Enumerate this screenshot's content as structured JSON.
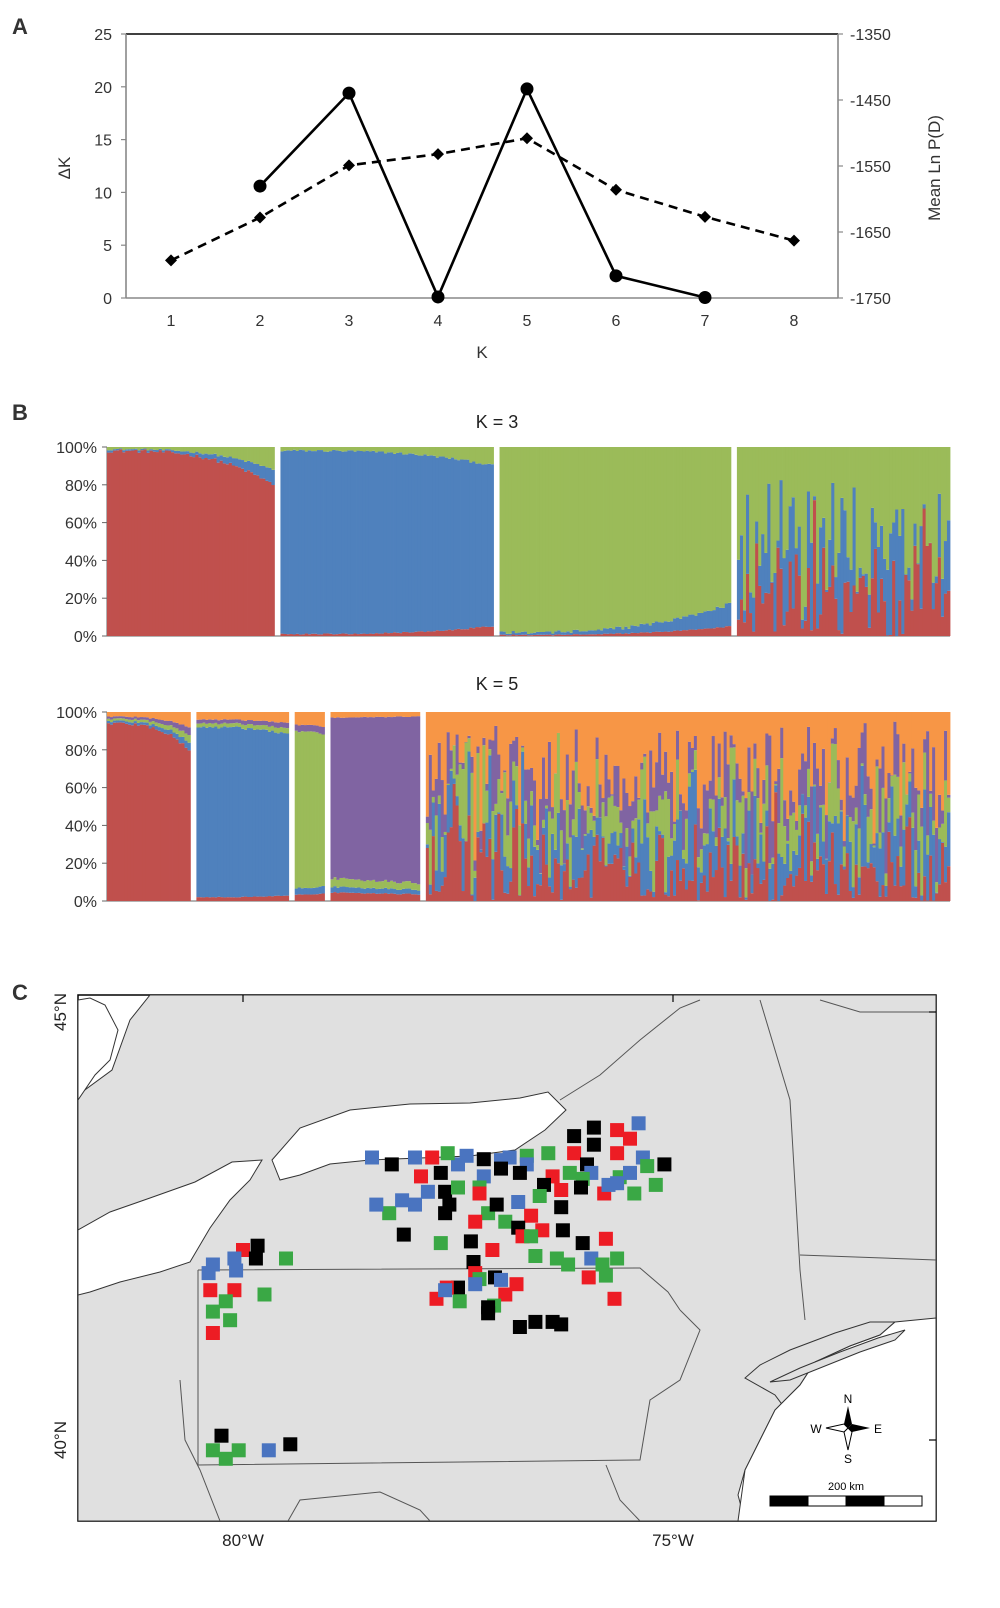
{
  "panels": {
    "a_label": "A",
    "b_label": "B",
    "c_label": "C"
  },
  "chart_data": [
    {
      "type": "line",
      "panel": "A",
      "xlabel": "K",
      "ylabel": "ΔK",
      "y2label": "Mean Ln P(D)",
      "x_ticks": [
        1,
        2,
        3,
        4,
        5,
        6,
        7,
        8
      ],
      "ylim": [
        0,
        25
      ],
      "y_ticks": [
        0,
        5,
        10,
        15,
        20,
        25
      ],
      "y2lim": [
        -1750,
        -1350
      ],
      "y2_ticks": [
        -1750,
        -1650,
        -1550,
        -1450,
        -1350
      ],
      "grid": false,
      "series": [
        {
          "style": "solid",
          "marker": "circle",
          "axis": "left",
          "x": [
            2,
            3,
            4,
            5,
            6,
            7
          ],
          "values": [
            10.6,
            19.4,
            0.1,
            19.8,
            2.1,
            0.05
          ]
        },
        {
          "style": "dashed",
          "marker": "diamond",
          "axis": "right",
          "x": [
            1,
            2,
            3,
            4,
            5,
            6,
            7,
            8
          ],
          "values": [
            -1693,
            -1628,
            -1549,
            -1532,
            -1508,
            -1586,
            -1627,
            -1663
          ]
        }
      ]
    },
    {
      "type": "bar",
      "panel": "B",
      "subtitle": "K = 3",
      "stacked": true,
      "ylim": [
        0,
        100
      ],
      "y_ticks": [
        "0%",
        "20%",
        "40%",
        "60%",
        "80%",
        "100%"
      ],
      "colors": [
        "#c0504d",
        "#4f81bd",
        "#9bbb59"
      ],
      "groups": [
        {
          "size": 55,
          "dominant": 0,
          "start": 98,
          "end": 80,
          "trend": "down",
          "other": [
            0.4,
            0.6
          ]
        },
        {
          "size": 70,
          "dominant": 1,
          "start": 97,
          "end": 85,
          "trend": "down",
          "other": [
            0.35,
            0.65
          ]
        },
        {
          "size": 76,
          "dominant": 2,
          "start": 98,
          "end": 83,
          "trend": "down",
          "other": [
            0.3,
            0.7
          ]
        },
        {
          "size": 70,
          "mixed": true
        }
      ]
    },
    {
      "type": "bar",
      "panel": "B",
      "subtitle": "K = 5",
      "stacked": true,
      "ylim": [
        0,
        100
      ],
      "y_ticks": [
        "0%",
        "20%",
        "40%",
        "60%",
        "80%",
        "100%"
      ],
      "colors": [
        "#c0504d",
        "#4f81bd",
        "#9bbb59",
        "#8064a2",
        "#f79646"
      ],
      "groups": [
        {
          "size": 28,
          "dominant": 0,
          "start": 94,
          "end": 80,
          "trend": "down",
          "other": [
            0.2,
            0.2,
            0.2,
            0.4
          ]
        },
        {
          "size": 31,
          "dominant": 1,
          "start": 90,
          "end": 85,
          "trend": "down",
          "other": [
            0.2,
            0.2,
            0.2,
            0.4
          ]
        },
        {
          "size": 10,
          "dominant": 2,
          "start": 83,
          "end": 80,
          "trend": "down",
          "other": [
            0.2,
            0.2,
            0.2,
            0.4
          ]
        },
        {
          "size": 30,
          "dominant": 3,
          "start": 85,
          "end": 88,
          "trend": "up",
          "other": [
            0.3,
            0.2,
            0.3,
            0.2
          ]
        },
        {
          "size": 176,
          "mixed": true
        }
      ]
    }
  ],
  "map": {
    "lat_labels": [
      "45°N",
      "40°N"
    ],
    "lon_labels": [
      "80°W",
      "75°W"
    ],
    "compass": {
      "n": "N",
      "s": "S",
      "e": "E",
      "w": "W"
    },
    "scale_label": "200 km",
    "colors": {
      "black": "#000000",
      "red": "#ed1c24",
      "blue": "#4a74c0",
      "green": "#3aa845",
      "land": "#e0e0e0",
      "water": "#ffffff"
    },
    "sites": [
      {
        "c": "black",
        "lon": -76.15,
        "lat": 43.55
      },
      {
        "c": "black",
        "lon": -75.92,
        "lat": 43.65
      },
      {
        "c": "red",
        "lon": -75.65,
        "lat": 43.62
      },
      {
        "c": "blue",
        "lon": -75.4,
        "lat": 43.7
      },
      {
        "c": "red",
        "lon": -75.5,
        "lat": 43.52
      },
      {
        "c": "black",
        "lon": -75.92,
        "lat": 43.45
      },
      {
        "c": "red",
        "lon": -76.15,
        "lat": 43.35
      },
      {
        "c": "blue",
        "lon": -76.9,
        "lat": 43.3
      },
      {
        "c": "blue",
        "lon": -77.0,
        "lat": 43.27
      },
      {
        "c": "green",
        "lon": -76.7,
        "lat": 43.32
      },
      {
        "c": "green",
        "lon": -76.45,
        "lat": 43.35
      },
      {
        "c": "red",
        "lon": -75.65,
        "lat": 43.35
      },
      {
        "c": "blue",
        "lon": -75.35,
        "lat": 43.3
      },
      {
        "c": "black",
        "lon": -75.1,
        "lat": 43.22
      },
      {
        "c": "green",
        "lon": -75.3,
        "lat": 43.2
      },
      {
        "c": "black",
        "lon": -76.0,
        "lat": 43.22
      },
      {
        "c": "blue",
        "lon": -77.4,
        "lat": 43.32
      },
      {
        "c": "blue",
        "lon": -77.5,
        "lat": 43.22
      },
      {
        "c": "red",
        "lon": -77.8,
        "lat": 43.3
      },
      {
        "c": "blue",
        "lon": -78.0,
        "lat": 43.3
      },
      {
        "c": "green",
        "lon": -77.62,
        "lat": 43.35
      },
      {
        "c": "black",
        "lon": -77.2,
        "lat": 43.28
      },
      {
        "c": "blue",
        "lon": -76.7,
        "lat": 43.22
      },
      {
        "c": "black",
        "lon": -76.78,
        "lat": 43.12
      },
      {
        "c": "red",
        "lon": -76.4,
        "lat": 43.08
      },
      {
        "c": "green",
        "lon": -76.2,
        "lat": 43.12
      },
      {
        "c": "blue",
        "lon": -75.95,
        "lat": 43.12
      },
      {
        "c": "green",
        "lon": -76.05,
        "lat": 43.05
      },
      {
        "c": "green",
        "lon": -75.62,
        "lat": 43.07
      },
      {
        "c": "blue",
        "lon": -75.5,
        "lat": 43.12
      },
      {
        "c": "blue",
        "lon": -75.65,
        "lat": 43.0
      },
      {
        "c": "black",
        "lon": -78.27,
        "lat": 43.22
      },
      {
        "c": "blue",
        "lon": -78.5,
        "lat": 43.3
      },
      {
        "c": "red",
        "lon": -77.93,
        "lat": 43.08
      },
      {
        "c": "black",
        "lon": -77.7,
        "lat": 43.12
      },
      {
        "c": "black",
        "lon": -77.0,
        "lat": 43.17
      },
      {
        "c": "blue",
        "lon": -77.2,
        "lat": 43.08
      },
      {
        "c": "green",
        "lon": -77.25,
        "lat": 42.95
      },
      {
        "c": "black",
        "lon": -76.5,
        "lat": 42.98
      },
      {
        "c": "green",
        "lon": -76.55,
        "lat": 42.85
      },
      {
        "c": "red",
        "lon": -76.3,
        "lat": 42.92
      },
      {
        "c": "black",
        "lon": -76.07,
        "lat": 42.95
      },
      {
        "c": "red",
        "lon": -75.8,
        "lat": 42.88
      },
      {
        "c": "green",
        "lon": -75.45,
        "lat": 42.88
      },
      {
        "c": "green",
        "lon": -75.2,
        "lat": 42.98
      },
      {
        "c": "blue",
        "lon": -75.75,
        "lat": 42.98
      },
      {
        "c": "black",
        "lon": -77.65,
        "lat": 42.9
      },
      {
        "c": "blue",
        "lon": -77.85,
        "lat": 42.9
      },
      {
        "c": "green",
        "lon": -77.5,
        "lat": 42.95
      },
      {
        "c": "red",
        "lon": -77.25,
        "lat": 42.88
      },
      {
        "c": "black",
        "lon": -77.6,
        "lat": 42.75
      },
      {
        "c": "blue",
        "lon": -78.0,
        "lat": 42.75
      },
      {
        "c": "green",
        "lon": -78.3,
        "lat": 42.65
      },
      {
        "c": "blue",
        "lon": -78.15,
        "lat": 42.8
      },
      {
        "c": "blue",
        "lon": -78.45,
        "lat": 42.75
      },
      {
        "c": "blue",
        "lon": -76.8,
        "lat": 42.78
      },
      {
        "c": "green",
        "lon": -77.15,
        "lat": 42.65
      },
      {
        "c": "black",
        "lon": -77.05,
        "lat": 42.75
      },
      {
        "c": "black",
        "lon": -76.3,
        "lat": 42.72
      },
      {
        "c": "black",
        "lon": -77.65,
        "lat": 42.65
      },
      {
        "c": "red",
        "lon": -77.3,
        "lat": 42.55
      },
      {
        "c": "green",
        "lon": -76.95,
        "lat": 42.55
      },
      {
        "c": "red",
        "lon": -76.65,
        "lat": 42.62
      },
      {
        "c": "black",
        "lon": -76.8,
        "lat": 42.48
      },
      {
        "c": "red",
        "lon": -76.75,
        "lat": 42.38
      },
      {
        "c": "red",
        "lon": -76.52,
        "lat": 42.45
      },
      {
        "c": "black",
        "lon": -76.28,
        "lat": 42.45
      },
      {
        "c": "green",
        "lon": -76.65,
        "lat": 42.38
      },
      {
        "c": "black",
        "lon": -76.05,
        "lat": 42.3
      },
      {
        "c": "blue",
        "lon": -75.95,
        "lat": 42.12
      },
      {
        "c": "red",
        "lon": -75.78,
        "lat": 42.35
      },
      {
        "c": "green",
        "lon": -76.6,
        "lat": 42.15
      },
      {
        "c": "green",
        "lon": -76.35,
        "lat": 42.12
      },
      {
        "c": "green",
        "lon": -76.22,
        "lat": 42.05
      },
      {
        "c": "red",
        "lon": -76.82,
        "lat": 41.82
      },
      {
        "c": "black",
        "lon": -77.07,
        "lat": 41.9
      },
      {
        "c": "black",
        "lon": -78.13,
        "lat": 42.4
      },
      {
        "c": "green",
        "lon": -77.7,
        "lat": 42.3
      },
      {
        "c": "black",
        "lon": -77.35,
        "lat": 42.32
      },
      {
        "c": "red",
        "lon": -77.1,
        "lat": 42.22
      },
      {
        "c": "black",
        "lon": -77.32,
        "lat": 42.08
      },
      {
        "c": "red",
        "lon": -77.3,
        "lat": 41.95
      },
      {
        "c": "green",
        "lon": -77.25,
        "lat": 41.88
      },
      {
        "c": "blue",
        "lon": -77.0,
        "lat": 41.87
      },
      {
        "c": "black",
        "lon": -77.5,
        "lat": 41.78
      },
      {
        "c": "blue",
        "lon": -77.3,
        "lat": 41.82
      },
      {
        "c": "green",
        "lon": -77.48,
        "lat": 41.62
      },
      {
        "c": "red",
        "lon": -76.95,
        "lat": 41.7
      },
      {
        "c": "green",
        "lon": -77.08,
        "lat": 41.57
      },
      {
        "c": "black",
        "lon": -77.15,
        "lat": 41.55
      },
      {
        "c": "black",
        "lon": -77.15,
        "lat": 41.48
      },
      {
        "c": "red",
        "lon": -77.63,
        "lat": 41.78
      },
      {
        "c": "red",
        "lon": -77.75,
        "lat": 41.65
      },
      {
        "c": "blue",
        "lon": -77.65,
        "lat": 41.75
      },
      {
        "c": "black",
        "lon": -76.6,
        "lat": 41.38
      },
      {
        "c": "black",
        "lon": -76.78,
        "lat": 41.32
      },
      {
        "c": "black",
        "lon": -76.3,
        "lat": 41.35
      },
      {
        "c": "red",
        "lon": -75.98,
        "lat": 41.9
      },
      {
        "c": "green",
        "lon": -75.82,
        "lat": 42.05
      },
      {
        "c": "green",
        "lon": -75.65,
        "lat": 42.12
      },
      {
        "c": "green",
        "lon": -75.78,
        "lat": 41.92
      },
      {
        "c": "red",
        "lon": -75.68,
        "lat": 41.65
      },
      {
        "c": "black",
        "lon": -76.4,
        "lat": 41.38
      },
      {
        "c": "black",
        "lon": -79.83,
        "lat": 42.27
      },
      {
        "c": "red",
        "lon": -80.0,
        "lat": 42.22
      },
      {
        "c": "black",
        "lon": -79.85,
        "lat": 42.12
      },
      {
        "c": "blue",
        "lon": -80.1,
        "lat": 42.12
      },
      {
        "c": "blue",
        "lon": -80.35,
        "lat": 42.05
      },
      {
        "c": "blue",
        "lon": -80.4,
        "lat": 41.95
      },
      {
        "c": "blue",
        "lon": -80.08,
        "lat": 41.98
      },
      {
        "c": "green",
        "lon": -79.5,
        "lat": 42.12
      },
      {
        "c": "red",
        "lon": -80.1,
        "lat": 41.75
      },
      {
        "c": "green",
        "lon": -80.2,
        "lat": 41.62
      },
      {
        "c": "red",
        "lon": -80.38,
        "lat": 41.75
      },
      {
        "c": "green",
        "lon": -79.75,
        "lat": 41.7
      },
      {
        "c": "green",
        "lon": -80.35,
        "lat": 41.5
      },
      {
        "c": "green",
        "lon": -80.15,
        "lat": 41.4
      },
      {
        "c": "red",
        "lon": -80.35,
        "lat": 41.25
      },
      {
        "c": "black",
        "lon": -80.25,
        "lat": 40.05
      },
      {
        "c": "green",
        "lon": -80.35,
        "lat": 39.88
      },
      {
        "c": "green",
        "lon": -80.2,
        "lat": 39.78
      },
      {
        "c": "green",
        "lon": -80.05,
        "lat": 39.88
      },
      {
        "c": "blue",
        "lon": -79.7,
        "lat": 39.88
      },
      {
        "c": "black",
        "lon": -79.45,
        "lat": 39.95
      }
    ]
  }
}
